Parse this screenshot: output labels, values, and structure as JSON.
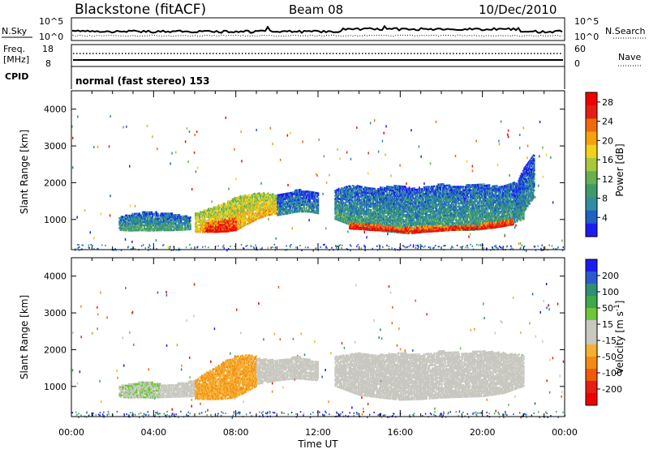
{
  "header": {
    "radar": "Blackstone (fitACF)",
    "beam": "Beam 08",
    "date": "10/Dec/2010"
  },
  "top_panels": {
    "nsky_label": "N.Sky",
    "nsearch_label": "N.Search",
    "noise_ticks_left": [
      "10^5",
      "10^0"
    ],
    "noise_ticks_right": [
      "10^5",
      "10^0"
    ],
    "freq_label_line1": "Freq.",
    "freq_label_line2": "[MHz]",
    "freq_ticks": [
      "18",
      "8"
    ],
    "nave_label": "Nave",
    "nave_ticks": [
      "60",
      "0"
    ],
    "cpid_label": "CPID",
    "cpid_text": "normal (fast stereo) 153"
  },
  "colors": {
    "power_scale": [
      "#1c1cf0",
      "#1f5fc8",
      "#2f8fa0",
      "#3e9a6a",
      "#68b052",
      "#a7c83c",
      "#f0d21a",
      "#f4a20e",
      "#f06a0c",
      "#e61e12",
      "#f00000"
    ],
    "velocity_scale": [
      "#1c1cf0",
      "#2a5ad2",
      "#2f8f78",
      "#3fa84a",
      "#6cc83a",
      "#c8c8c0",
      "#c8c8c0",
      "#f4b030",
      "#f48a12",
      "#f05a0a",
      "#e81e10",
      "#f00000"
    ],
    "ground_scatter": "#c8c8c0"
  },
  "chart_data": [
    {
      "type": "heatmap",
      "title": "Power",
      "xlabel": "",
      "ylabel": "Slant Range [km]",
      "xticks": [
        "00:00",
        "04:00",
        "08:00",
        "12:00",
        "16:00",
        "20:00",
        "00:00"
      ],
      "yticks": [
        "1000",
        "2000",
        "3000",
        "4000"
      ],
      "xlim_hours": [
        0,
        24
      ],
      "ylim_km": [
        180,
        4500
      ],
      "colorbar_label": "Power [dB]",
      "colorbar_ticks": [
        "4",
        "8",
        "12",
        "16",
        "20",
        "24",
        "28"
      ],
      "colorbar_range": [
        0,
        30
      ],
      "series": [
        {
          "x": [
            2.3,
            2.8,
            3.3,
            3.8,
            4.3,
            4.8,
            5.3,
            5.8
          ],
          "y_low_km": [
            700,
            680,
            690,
            680,
            690,
            690,
            700,
            720
          ],
          "y_high_km": [
            1050,
            1120,
            1180,
            1200,
            1180,
            1150,
            1100,
            1050
          ],
          "value_db": 10
        },
        {
          "x": [
            6.0,
            6.5,
            7.0,
            7.5,
            8.0,
            8.5,
            9.0,
            9.5,
            10.0
          ],
          "y_low_km": [
            650,
            640,
            640,
            650,
            700,
            850,
            1000,
            1100,
            1150
          ],
          "y_high_km": [
            1150,
            1250,
            1350,
            1450,
            1600,
            1650,
            1700,
            1700,
            1650
          ],
          "value_db": 20
        },
        {
          "x": [
            6.5,
            7.0,
            7.5,
            8.0
          ],
          "y_low_km": [
            660,
            650,
            660,
            700
          ],
          "y_high_km": [
            900,
            950,
            1000,
            1050
          ],
          "value_db": 28
        },
        {
          "x": [
            10.0,
            10.5,
            11.0,
            11.5,
            12.0
          ],
          "y_low_km": [
            1100,
            1150,
            1200,
            1200,
            1150
          ],
          "y_high_km": [
            1650,
            1700,
            1800,
            1750,
            1700
          ],
          "value_db": 8
        },
        {
          "x": [
            12.8,
            13.5,
            14.0,
            14.5,
            15.0,
            15.5,
            16.0,
            16.5,
            17.0,
            17.5,
            18.0,
            18.5,
            19.0,
            19.5,
            20.0,
            20.5,
            21.0,
            21.5,
            22.0
          ],
          "y_low_km": [
            1000,
            850,
            750,
            700,
            680,
            650,
            620,
            600,
            640,
            660,
            680,
            700,
            700,
            700,
            720,
            760,
            800,
            900,
            1000
          ],
          "y_high_km": [
            1800,
            1900,
            1900,
            1850,
            1850,
            1900,
            1900,
            1850,
            1850,
            1900,
            1950,
            1900,
            1900,
            1950,
            1950,
            1900,
            1900,
            2000,
            1850
          ],
          "value_db": 10
        },
        {
          "x": [
            13.5,
            14.5,
            15.5,
            16.5,
            17.5,
            18.5,
            19.5,
            20.5,
            21.5
          ],
          "y_low_km": [
            740,
            700,
            680,
            620,
            660,
            700,
            720,
            760,
            850
          ],
          "y_high_km": [
            900,
            850,
            800,
            760,
            800,
            830,
            850,
            900,
            1000
          ],
          "value_db": 28
        },
        {
          "x": [
            21.5,
            22.0,
            22.5
          ],
          "y_low_km": [
            1000,
            1200,
            1600
          ],
          "y_high_km": [
            1800,
            2400,
            2800
          ],
          "value_db": 8
        }
      ]
    },
    {
      "type": "heatmap",
      "title": "Velocity",
      "xlabel": "Time UT",
      "ylabel": "Slant Range [km]",
      "xticks": [
        "00:00",
        "04:00",
        "08:00",
        "12:00",
        "16:00",
        "20:00",
        "00:00"
      ],
      "yticks": [
        "1000",
        "2000",
        "3000",
        "4000"
      ],
      "xlim_hours": [
        0,
        24
      ],
      "ylim_km": [
        180,
        4500
      ],
      "colorbar_label": "Velocity [m s^-1]",
      "colorbar_ticks": [
        "200",
        "100",
        "50",
        "15",
        "-15",
        "-50",
        "-100",
        "-200"
      ],
      "colorbar_range": [
        -250,
        250
      ],
      "series": [
        {
          "x": [
            2.3,
            2.8,
            3.3,
            3.8,
            4.3
          ],
          "y_low_km": [
            700,
            680,
            690,
            680,
            690
          ],
          "y_high_km": [
            1000,
            1050,
            1100,
            1100,
            1050
          ],
          "value_ms": 40
        },
        {
          "x": [
            4.3,
            5.0,
            5.5,
            6.0
          ],
          "y_low_km": [
            690,
            700,
            710,
            720
          ],
          "y_high_km": [
            1050,
            1050,
            1100,
            1150
          ],
          "value_ms": 0
        },
        {
          "x": [
            6.0,
            6.5,
            7.0,
            7.5,
            8.0,
            8.5,
            9.0
          ],
          "y_low_km": [
            650,
            640,
            640,
            650,
            700,
            850,
            1000
          ],
          "y_high_km": [
            1150,
            1350,
            1500,
            1700,
            1800,
            1850,
            1800
          ],
          "value_ms": -80
        },
        {
          "x": [
            9.0,
            10.0,
            11.0,
            12.0
          ],
          "y_low_km": [
            1050,
            1150,
            1200,
            1150
          ],
          "y_high_km": [
            1750,
            1700,
            1800,
            1650
          ],
          "value_ms": 0
        },
        {
          "x": [
            12.8,
            14.0,
            15.0,
            16.0,
            17.0,
            18.0,
            19.0,
            20.0,
            21.0,
            22.0
          ],
          "y_low_km": [
            1000,
            750,
            680,
            620,
            640,
            680,
            700,
            720,
            800,
            1000
          ],
          "y_high_km": [
            1800,
            1900,
            1850,
            1900,
            1850,
            1950,
            1900,
            1950,
            1900,
            1850
          ],
          "value_ms": 0
        }
      ]
    }
  ]
}
